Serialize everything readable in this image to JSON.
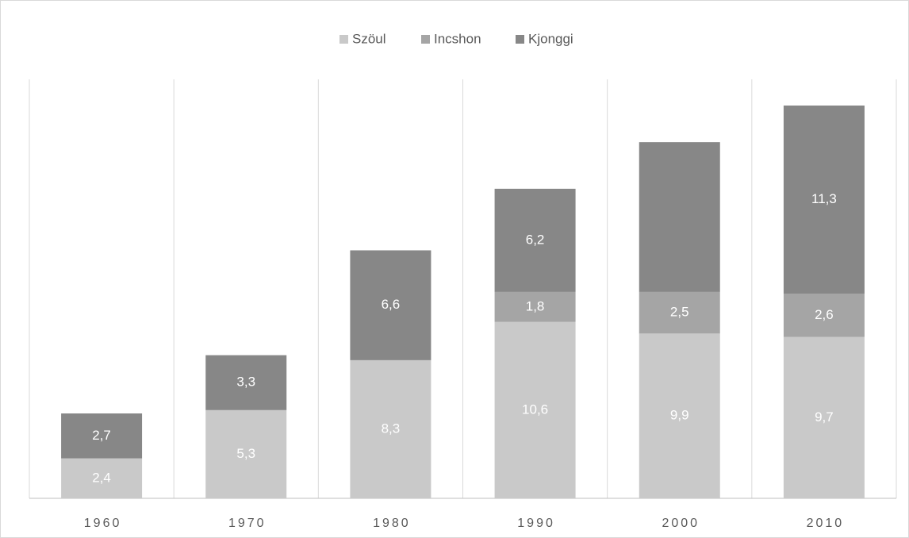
{
  "chart_data": {
    "type": "bar",
    "stacked": true,
    "categories": [
      "1960",
      "1970",
      "1980",
      "1990",
      "2000",
      "2010"
    ],
    "series": [
      {
        "name": "Szöul",
        "color": "#c9c9c9",
        "values": [
          2.4,
          5.3,
          8.3,
          10.6,
          9.9,
          9.7
        ],
        "value_labels": [
          "2,4",
          "5,3",
          "8,3",
          "10,6",
          "9,9",
          "9,7"
        ]
      },
      {
        "name": "Incshon",
        "color": "#a5a5a5",
        "values": [
          null,
          null,
          null,
          1.8,
          2.5,
          2.6
        ],
        "value_labels": [
          null,
          null,
          null,
          "1,8",
          "2,5",
          "2,6"
        ]
      },
      {
        "name": "Kjonggi",
        "color": "#878787",
        "values": [
          2.7,
          3.3,
          6.6,
          6.2,
          9,
          11.3
        ],
        "value_labels": [
          "2,7",
          "3,3",
          "6,6",
          "6,2",
          null,
          "11,3"
        ]
      }
    ],
    "legend": "top",
    "grid": true
  }
}
